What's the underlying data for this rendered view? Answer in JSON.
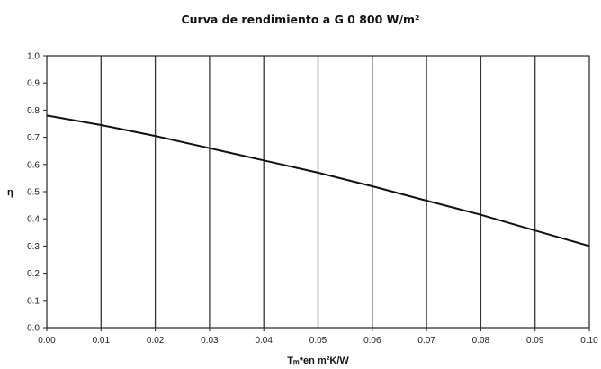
{
  "chart_data": {
    "type": "line",
    "title": "Curva de rendimiento a G 0 800 W/m²",
    "xlabel": "Tₘ*en m²K/W",
    "ylabel": "η",
    "xlim": [
      0,
      0.1
    ],
    "ylim": [
      0,
      1.0
    ],
    "x_ticks": [
      "0.00",
      "0.01",
      "0.02",
      "0.03",
      "0.04",
      "0.05",
      "0.06",
      "0.07",
      "0.08",
      "0.09",
      "0.10"
    ],
    "y_ticks": [
      "0.0",
      "0.1",
      "0.2",
      "0.3",
      "0.4",
      "0.5",
      "0.6",
      "0.7",
      "0.8",
      "0.9",
      "1.0"
    ],
    "grid": "vertical",
    "series": [
      {
        "x": [
          0.0,
          0.01,
          0.02,
          0.03,
          0.04,
          0.05,
          0.06,
          0.07,
          0.08,
          0.09,
          0.1
        ],
        "values": [
          0.78,
          0.745,
          0.705,
          0.66,
          0.615,
          0.57,
          0.52,
          0.467,
          0.415,
          0.357,
          0.3
        ]
      }
    ],
    "line_color": "#111111"
  }
}
